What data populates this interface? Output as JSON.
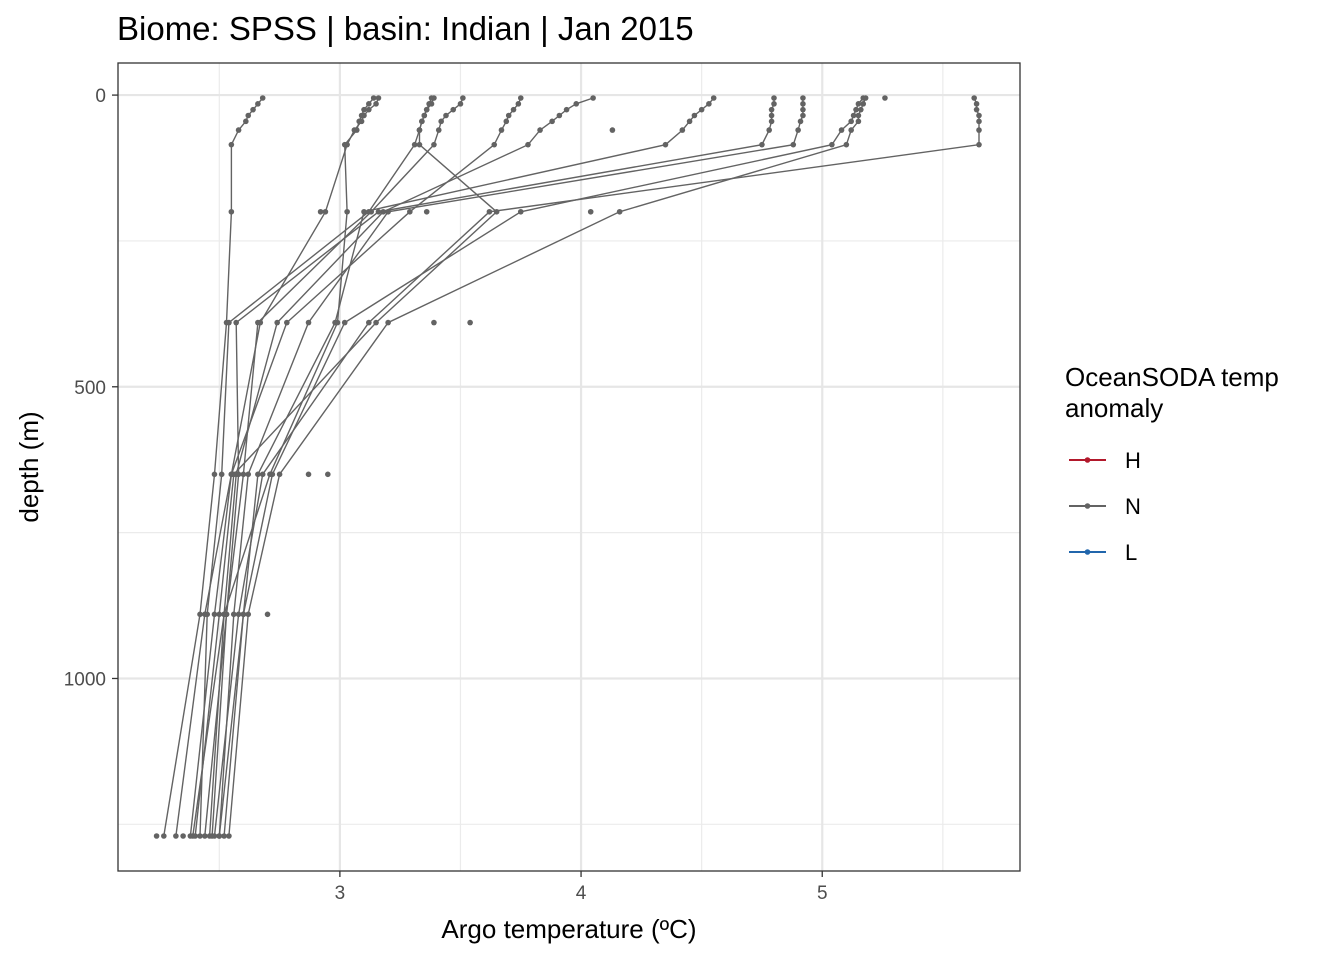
{
  "chart_data": {
    "type": "line",
    "title": "Biome: SPSS | basin: Indian  | Jan 2015",
    "xlabel": "Argo temperature (ºC)",
    "ylabel": "depth (m)",
    "xlim": [
      2.08,
      5.82
    ],
    "ylim": [
      -55,
      1330
    ],
    "y_reversed": true,
    "x_ticks": [
      3,
      4,
      5
    ],
    "x_tick_labels": [
      "3",
      "4",
      "5"
    ],
    "y_ticks": [
      0,
      500,
      1000
    ],
    "y_tick_labels": [
      "0",
      "500",
      "1000"
    ],
    "grid": true,
    "legend": {
      "title_lines": [
        "OceanSODA temp",
        "anomaly"
      ],
      "position": "right",
      "entries": [
        {
          "label": "H",
          "color": "#b2182b"
        },
        {
          "label": "N",
          "color": "#636363"
        },
        {
          "label": "L",
          "color": "#2166ac"
        }
      ]
    },
    "series": [
      {
        "anomaly": "N",
        "points": [
          [
            2.68,
            5
          ],
          [
            2.66,
            15
          ],
          [
            2.64,
            25
          ],
          [
            2.62,
            35
          ],
          [
            2.61,
            45
          ],
          [
            2.58,
            60
          ],
          [
            2.55,
            85
          ],
          [
            2.55,
            200
          ],
          [
            2.53,
            390
          ],
          [
            2.48,
            650
          ],
          [
            2.42,
            890
          ],
          [
            2.27,
            1270
          ]
        ]
      },
      {
        "anomaly": "N",
        "points": [
          [
            3.16,
            5
          ],
          [
            3.15,
            15
          ],
          [
            3.12,
            25
          ],
          [
            3.1,
            35
          ],
          [
            3.09,
            45
          ],
          [
            3.06,
            60
          ],
          [
            3.03,
            85
          ],
          [
            2.94,
            200
          ],
          [
            2.67,
            390
          ],
          [
            2.55,
            650
          ],
          [
            2.44,
            890
          ],
          [
            2.32,
            1270
          ]
        ]
      },
      {
        "anomaly": "N",
        "points": [
          [
            3.14,
            5
          ],
          [
            3.12,
            15
          ],
          [
            3.1,
            25
          ],
          [
            3.09,
            35
          ],
          [
            3.08,
            45
          ],
          [
            3.07,
            60
          ],
          [
            3.02,
            85
          ],
          [
            3.03,
            200
          ],
          [
            2.99,
            390
          ],
          [
            2.71,
            650
          ],
          [
            2.52,
            890
          ],
          [
            2.39,
            1270
          ]
        ]
      },
      {
        "anomaly": "N",
        "points": [
          [
            3.39,
            5
          ],
          [
            3.38,
            15
          ],
          [
            3.36,
            25
          ],
          [
            3.35,
            35
          ],
          [
            3.34,
            45
          ],
          [
            3.33,
            60
          ],
          [
            3.31,
            85
          ],
          [
            3.12,
            200
          ],
          [
            2.54,
            390
          ],
          [
            2.51,
            650
          ],
          [
            2.45,
            890
          ],
          [
            2.42,
            1270
          ]
        ]
      },
      {
        "anomaly": "N",
        "points": [
          [
            3.51,
            5
          ],
          [
            3.5,
            15
          ],
          [
            3.47,
            25
          ],
          [
            3.44,
            35
          ],
          [
            3.42,
            45
          ],
          [
            3.41,
            60
          ],
          [
            3.39,
            85
          ],
          [
            3.13,
            200
          ],
          [
            2.66,
            390
          ],
          [
            2.6,
            650
          ],
          [
            2.53,
            890
          ],
          [
            2.44,
            1270
          ]
        ]
      },
      {
        "anomaly": "N",
        "points": [
          [
            3.38,
            5
          ],
          [
            3.37,
            15
          ],
          [
            3.36,
            25
          ],
          [
            3.35,
            35
          ],
          [
            3.34,
            45
          ],
          [
            3.33,
            60
          ],
          [
            3.33,
            85
          ],
          [
            3.65,
            200
          ],
          [
            3.15,
            390
          ],
          [
            2.56,
            650
          ],
          [
            2.5,
            890
          ],
          [
            2.4,
            1270
          ]
        ]
      },
      {
        "anomaly": "N",
        "points": [
          [
            3.75,
            5
          ],
          [
            3.74,
            15
          ],
          [
            3.72,
            25
          ],
          [
            3.7,
            35
          ],
          [
            3.69,
            45
          ],
          [
            3.67,
            60
          ],
          [
            3.64,
            85
          ],
          [
            3.29,
            200
          ],
          [
            2.78,
            390
          ],
          [
            2.55,
            650
          ],
          [
            2.48,
            890
          ],
          [
            2.38,
            1270
          ]
        ]
      },
      {
        "anomaly": "N",
        "points": [
          [
            4.05,
            5
          ],
          [
            3.98,
            15
          ],
          [
            3.94,
            25
          ],
          [
            3.91,
            35
          ],
          [
            3.88,
            45
          ],
          [
            3.83,
            60
          ],
          [
            3.78,
            85
          ],
          [
            3.18,
            200
          ],
          [
            2.74,
            390
          ],
          [
            2.57,
            650
          ],
          [
            2.52,
            890
          ],
          [
            2.46,
            1270
          ]
        ]
      },
      {
        "anomaly": "N",
        "points": [
          [
            4.55,
            5
          ],
          [
            4.53,
            15
          ],
          [
            4.5,
            25
          ],
          [
            4.47,
            35
          ],
          [
            4.45,
            45
          ],
          [
            4.42,
            60
          ],
          [
            4.35,
            85
          ],
          [
            3.1,
            200
          ],
          [
            2.98,
            390
          ],
          [
            2.66,
            650
          ],
          [
            2.6,
            890
          ],
          [
            2.5,
            1270
          ]
        ]
      },
      {
        "anomaly": "N",
        "points": [
          [
            4.8,
            5
          ],
          [
            4.8,
            15
          ],
          [
            4.79,
            25
          ],
          [
            4.79,
            35
          ],
          [
            4.79,
            45
          ],
          [
            4.78,
            60
          ],
          [
            4.75,
            85
          ],
          [
            3.16,
            200
          ],
          [
            2.57,
            390
          ],
          [
            2.58,
            650
          ],
          [
            2.53,
            890
          ],
          [
            2.47,
            1270
          ]
        ]
      },
      {
        "anomaly": "N",
        "points": [
          [
            4.92,
            5
          ],
          [
            4.92,
            15
          ],
          [
            4.92,
            25
          ],
          [
            4.92,
            35
          ],
          [
            4.91,
            45
          ],
          [
            4.9,
            60
          ],
          [
            4.88,
            85
          ],
          [
            3.2,
            200
          ],
          [
            2.87,
            390
          ],
          [
            2.62,
            650
          ],
          [
            2.56,
            890
          ],
          [
            2.5,
            1270
          ]
        ]
      },
      {
        "anomaly": "N",
        "points": [
          [
            5.17,
            5
          ],
          [
            5.15,
            15
          ],
          [
            5.14,
            25
          ],
          [
            5.13,
            35
          ],
          [
            5.12,
            45
          ],
          [
            5.08,
            60
          ],
          [
            5.04,
            85
          ],
          [
            3.75,
            200
          ],
          [
            3.02,
            390
          ],
          [
            2.72,
            650
          ],
          [
            2.6,
            890
          ],
          [
            2.52,
            1270
          ]
        ]
      },
      {
        "anomaly": "N",
        "points": [
          [
            5.18,
            5
          ],
          [
            5.17,
            15
          ],
          [
            5.16,
            25
          ],
          [
            5.15,
            35
          ],
          [
            5.15,
            45
          ],
          [
            5.12,
            60
          ],
          [
            5.1,
            85
          ],
          [
            4.16,
            200
          ],
          [
            3.2,
            390
          ],
          [
            2.75,
            650
          ],
          [
            2.62,
            890
          ],
          [
            2.54,
            1270
          ]
        ]
      },
      {
        "anomaly": "N",
        "points": [
          [
            5.63,
            5
          ],
          [
            5.64,
            15
          ],
          [
            5.64,
            25
          ],
          [
            5.65,
            35
          ],
          [
            5.65,
            45
          ],
          [
            5.65,
            60
          ],
          [
            5.65,
            85
          ],
          [
            3.62,
            200
          ],
          [
            3.12,
            390
          ],
          [
            2.68,
            650
          ],
          [
            2.58,
            890
          ],
          [
            2.48,
            1270
          ]
        ]
      }
    ],
    "extra_points": [
      {
        "anomaly": "N",
        "points": [
          [
            5.26,
            5
          ],
          [
            4.13,
            60
          ],
          [
            4.04,
            200
          ],
          [
            3.36,
            200
          ],
          [
            2.92,
            200
          ],
          [
            3.39,
            390
          ],
          [
            3.54,
            390
          ],
          [
            2.95,
            650
          ],
          [
            2.87,
            650
          ],
          [
            2.7,
            890
          ],
          [
            2.35,
            1270
          ],
          [
            2.24,
            1270
          ]
        ]
      }
    ]
  }
}
